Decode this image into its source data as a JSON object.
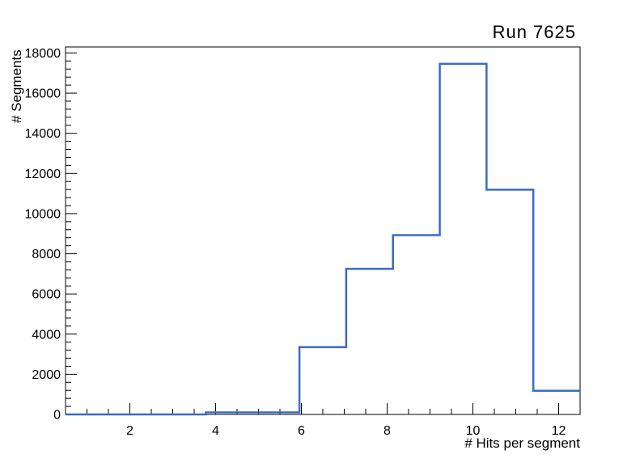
{
  "title": "Run 7625",
  "chart_data": {
    "type": "bar",
    "render_style": "step-outline-histogram",
    "title": "Run 7625",
    "xlabel": "# Hits per segment",
    "ylabel": "# Segments",
    "xlim": [
      0.5,
      12.5
    ],
    "ylim": [
      0,
      18300
    ],
    "bin_edges": [
      0.5,
      1.5909,
      2.6818,
      3.7727,
      4.8636,
      5.9545,
      7.0455,
      8.1364,
      9.2273,
      10.3182,
      11.4091,
      12.5
    ],
    "bin_counts": [
      0,
      0,
      0,
      100,
      100,
      3350,
      7250,
      8930,
      17460,
      11190,
      1180
    ],
    "x_major_ticks": [
      2,
      4,
      6,
      8,
      10,
      12
    ],
    "x_minor_step": 0.5,
    "y_major_ticks": [
      0,
      2000,
      4000,
      6000,
      8000,
      10000,
      12000,
      14000,
      16000,
      18000
    ],
    "y_minor_step": 400,
    "grid": false,
    "line_color": "#3a6bc5",
    "axis_color": "#000000",
    "background_color": "#ffffff"
  }
}
